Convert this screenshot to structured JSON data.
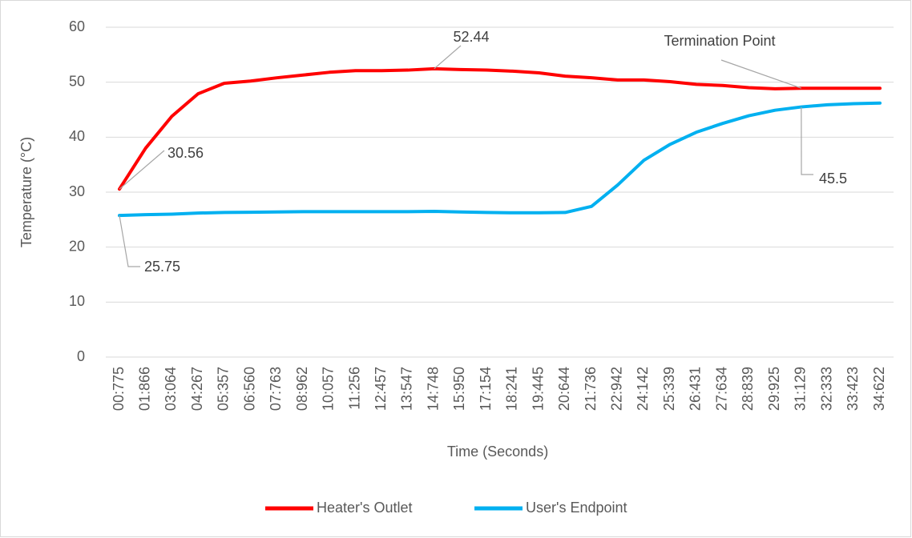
{
  "chart_data": {
    "type": "line",
    "categories": [
      "00:775",
      "01:866",
      "03:064",
      "04:267",
      "05:357",
      "06:560",
      "07:763",
      "08:962",
      "10:057",
      "11:256",
      "12:457",
      "13:547",
      "14:748",
      "15:950",
      "17:154",
      "18:241",
      "19:445",
      "20:644",
      "21:736",
      "22:942",
      "24:142",
      "25:339",
      "26:431",
      "27:634",
      "28:839",
      "29:925",
      "31:129",
      "32:333",
      "33:423",
      "34:622"
    ],
    "series": [
      {
        "name": "Heater's Outlet",
        "color": "#ff0000",
        "values": [
          30.56,
          38,
          43.8,
          47.9,
          49.8,
          50.2,
          50.8,
          51.3,
          51.8,
          52.1,
          52.1,
          52.2,
          52.44,
          52.3,
          52.2,
          52.0,
          51.7,
          51.1,
          50.8,
          50.4,
          50.4,
          50.1,
          49.6,
          49.4,
          49.0,
          48.8,
          48.9,
          48.9,
          48.9,
          48.9
        ]
      },
      {
        "name": "User's Endpoint",
        "color": "#00b0f0",
        "values": [
          25.75,
          25.9,
          26.0,
          26.2,
          26.3,
          26.35,
          26.4,
          26.45,
          26.45,
          26.45,
          26.45,
          26.45,
          26.5,
          26.4,
          26.3,
          26.25,
          26.25,
          26.3,
          27.4,
          31.3,
          35.8,
          38.7,
          40.9,
          42.5,
          43.9,
          44.9,
          45.5,
          45.9,
          46.1,
          46.2
        ]
      }
    ],
    "ylim": [
      0,
      60
    ],
    "yticks": [
      0,
      10,
      20,
      30,
      40,
      50,
      60
    ],
    "grid": true,
    "xlabel": "Time (Seconds)",
    "ylabel": "Temperature (°C)",
    "annotations": [
      "Termination Point"
    ],
    "legend": "bottom"
  }
}
